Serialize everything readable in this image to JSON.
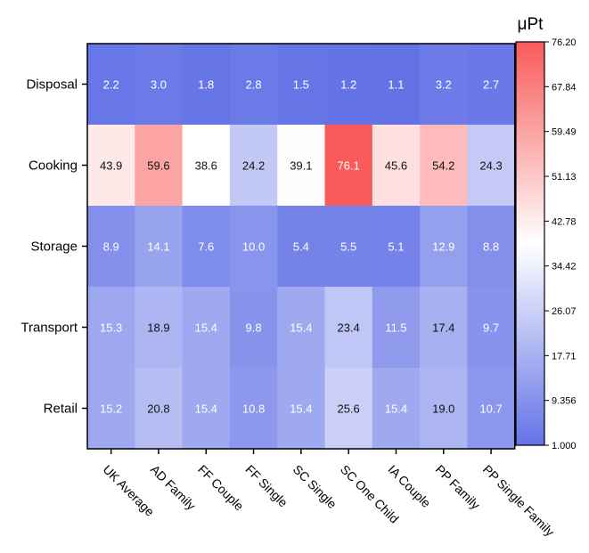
{
  "chart_data": {
    "type": "heatmap",
    "x_categories": [
      "UK Average",
      "AD Family",
      "FF Couple",
      "FF Single",
      "SC Single",
      "SC One Child",
      "IA Couple",
      "PP Family",
      "PP Single Family"
    ],
    "y_categories": [
      "Disposal",
      "Cooking",
      "Storage",
      "Transport",
      "Retail"
    ],
    "values": [
      [
        2.2,
        3.0,
        1.8,
        2.8,
        1.5,
        1.2,
        1.1,
        3.2,
        2.7
      ],
      [
        43.9,
        59.6,
        38.6,
        24.2,
        39.1,
        76.1,
        45.6,
        54.2,
        24.3
      ],
      [
        8.9,
        14.1,
        7.6,
        10.0,
        5.4,
        5.5,
        5.1,
        12.9,
        8.8
      ],
      [
        15.3,
        18.9,
        15.4,
        9.8,
        15.4,
        23.4,
        11.5,
        17.4,
        9.7
      ],
      [
        15.2,
        20.8,
        15.4,
        10.8,
        15.4,
        25.6,
        15.4,
        19.0,
        10.7
      ]
    ],
    "value_labels": [
      [
        "2.2",
        "3.0",
        "1.8",
        "2.8",
        "1.5",
        "1.2",
        "1.1",
        "3.2",
        "2.7"
      ],
      [
        "43.9",
        "59.6",
        "38.6",
        "24.2",
        "39.1",
        "76.1",
        "45.6",
        "54.2",
        "24.3"
      ],
      [
        "8.9",
        "14.1",
        "7.6",
        "10.0",
        "5.4",
        "5.5",
        "5.1",
        "12.9",
        "8.8"
      ],
      [
        "15.3",
        "18.9",
        "15.4",
        "9.8",
        "15.4",
        "23.4",
        "11.5",
        "17.4",
        "9.7"
      ],
      [
        "15.2",
        "20.8",
        "15.4",
        "10.8",
        "15.4",
        "25.6",
        "15.4",
        "19.0",
        "10.7"
      ]
    ],
    "colorbar": {
      "title": "μPt",
      "range": [
        1.0,
        76.2
      ],
      "tick_labels": [
        "76.20",
        "67.84",
        "59.49",
        "51.13",
        "42.78",
        "34.42",
        "26.07",
        "17.71",
        "9.356",
        "1.000"
      ],
      "colors": {
        "low": "#6373e6",
        "mid": "#ffffff",
        "high": "#f95a5a"
      }
    }
  }
}
